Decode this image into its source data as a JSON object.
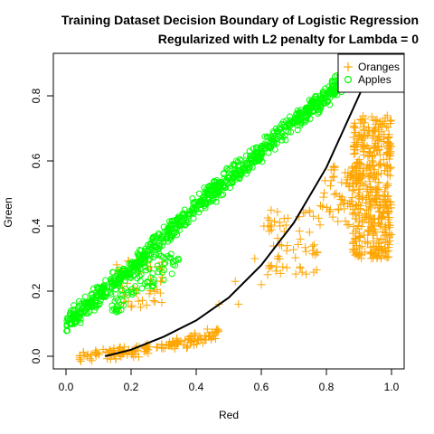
{
  "chart_data": {
    "type": "scatter",
    "title": "Training Dataset Decision Boundary of Logistic Regression",
    "subtitle": "Regularized with L2 penalty for Lambda = 0",
    "xlabel": "Red",
    "ylabel": "Green",
    "xlim": [
      0.0,
      1.0
    ],
    "ylim": [
      0.0,
      0.9
    ],
    "xticks": [
      "0.0",
      "0.2",
      "0.4",
      "0.6",
      "0.8",
      "1.0"
    ],
    "yticks": [
      "0.0",
      "0.2",
      "0.4",
      "0.6",
      "0.8"
    ],
    "legend": {
      "position": "top-right",
      "entries": [
        "Oranges",
        "Apples"
      ]
    },
    "grid": false,
    "series": [
      {
        "name": "Oranges",
        "marker": "plus",
        "color": "#FFA500",
        "clusters": [
          {
            "x": [
              0.04,
              0.47
            ],
            "trend": [
              [
                0.04,
                0.0
              ],
              [
                0.2,
                0.015
              ],
              [
                0.35,
                0.04
              ],
              [
                0.47,
                0.07
              ]
            ],
            "spread": 0.012,
            "count": 160
          },
          {
            "x": [
              0.88,
              1.0
            ],
            "y": [
              0.3,
              0.74
            ],
            "count": 450
          },
          {
            "x": [
              0.78,
              0.9
            ],
            "y": [
              0.4,
              0.6
            ],
            "count": 60
          },
          {
            "x": [
              0.6,
              0.78
            ],
            "y": [
              0.25,
              0.45
            ],
            "count": 60
          },
          {
            "x": [
              0.15,
              0.3
            ],
            "y": [
              0.15,
              0.3
            ],
            "count": 50
          }
        ],
        "points": [
          [
            0.52,
            0.23
          ],
          [
            0.53,
            0.16
          ],
          [
            0.47,
            0.16
          ],
          [
            0.6,
            0.22
          ],
          [
            0.58,
            0.3
          ],
          [
            0.65,
            0.3
          ],
          [
            0.62,
            0.4
          ],
          [
            0.68,
            0.34
          ],
          [
            0.72,
            0.36
          ],
          [
            0.76,
            0.43
          ],
          [
            0.83,
            0.5
          ],
          [
            0.82,
            0.55
          ]
        ]
      },
      {
        "name": "Apples",
        "marker": "circle",
        "color": "#00FF00",
        "clusters": [
          {
            "x": [
              0.0,
              0.87
            ],
            "trend": [
              [
                0.0,
                0.1
              ],
              [
                0.2,
                0.27
              ],
              [
                0.4,
                0.46
              ],
              [
                0.6,
                0.63
              ],
              [
                0.8,
                0.8
              ],
              [
                0.87,
                0.87
              ]
            ],
            "spread": 0.02,
            "count": 900
          },
          {
            "x": [
              0.14,
              0.35
            ],
            "trend": [
              [
                0.14,
                0.14
              ],
              [
                0.25,
                0.24
              ],
              [
                0.35,
                0.3
              ]
            ],
            "spread": 0.025,
            "count": 70
          }
        ]
      }
    ],
    "decision_boundary": {
      "color": "#000000",
      "points": [
        [
          0.12,
          0.0
        ],
        [
          0.2,
          0.02
        ],
        [
          0.3,
          0.06
        ],
        [
          0.4,
          0.11
        ],
        [
          0.5,
          0.18
        ],
        [
          0.6,
          0.28
        ],
        [
          0.7,
          0.41
        ],
        [
          0.8,
          0.58
        ],
        [
          0.9,
          0.8
        ],
        [
          0.94,
          0.89
        ]
      ]
    }
  }
}
